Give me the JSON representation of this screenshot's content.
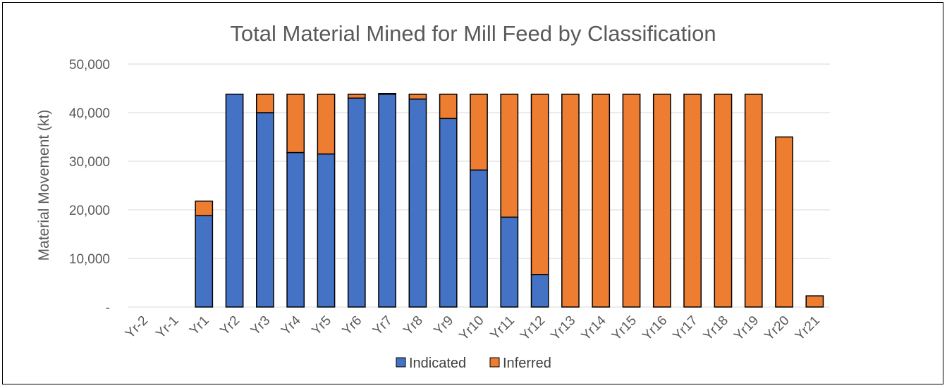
{
  "chart_data": {
    "type": "bar",
    "stacked": true,
    "title": "Total Material Mined for Mill Feed by Classification",
    "xlabel": "",
    "ylabel": "Material Movement (kt)",
    "ylim": [
      0,
      50000
    ],
    "yticks": [
      0,
      10000,
      20000,
      30000,
      40000,
      50000
    ],
    "ytick_labels": [
      "-",
      "10,000",
      "20,000",
      "30,000",
      "40,000",
      "50,000"
    ],
    "categories": [
      "Yr-2",
      "Yr-1",
      "Yr1",
      "Yr2",
      "Yr3",
      "Yr4",
      "Yr5",
      "Yr6",
      "Yr7",
      "Yr8",
      "Yr9",
      "Yr10",
      "Yr11",
      "Yr12",
      "Yr13",
      "Yr14",
      "Yr15",
      "Yr16",
      "Yr17",
      "Yr18",
      "Yr19",
      "Yr20",
      "Yr21"
    ],
    "series": [
      {
        "name": "Indicated",
        "color": "#4472C4",
        "values": [
          0,
          0,
          18800,
          43800,
          40000,
          31800,
          31500,
          43000,
          43800,
          42800,
          38800,
          28200,
          18500,
          6700,
          0,
          0,
          0,
          0,
          0,
          0,
          0,
          0,
          0
        ]
      },
      {
        "name": "Inferred",
        "color": "#ED7D31",
        "values": [
          0,
          0,
          3000,
          0,
          3800,
          12000,
          12300,
          800,
          150,
          1000,
          5000,
          15600,
          25300,
          37100,
          43800,
          43800,
          43800,
          43800,
          43800,
          43800,
          43800,
          35000,
          2300
        ]
      }
    ],
    "legend": "bottom",
    "grid": true
  }
}
